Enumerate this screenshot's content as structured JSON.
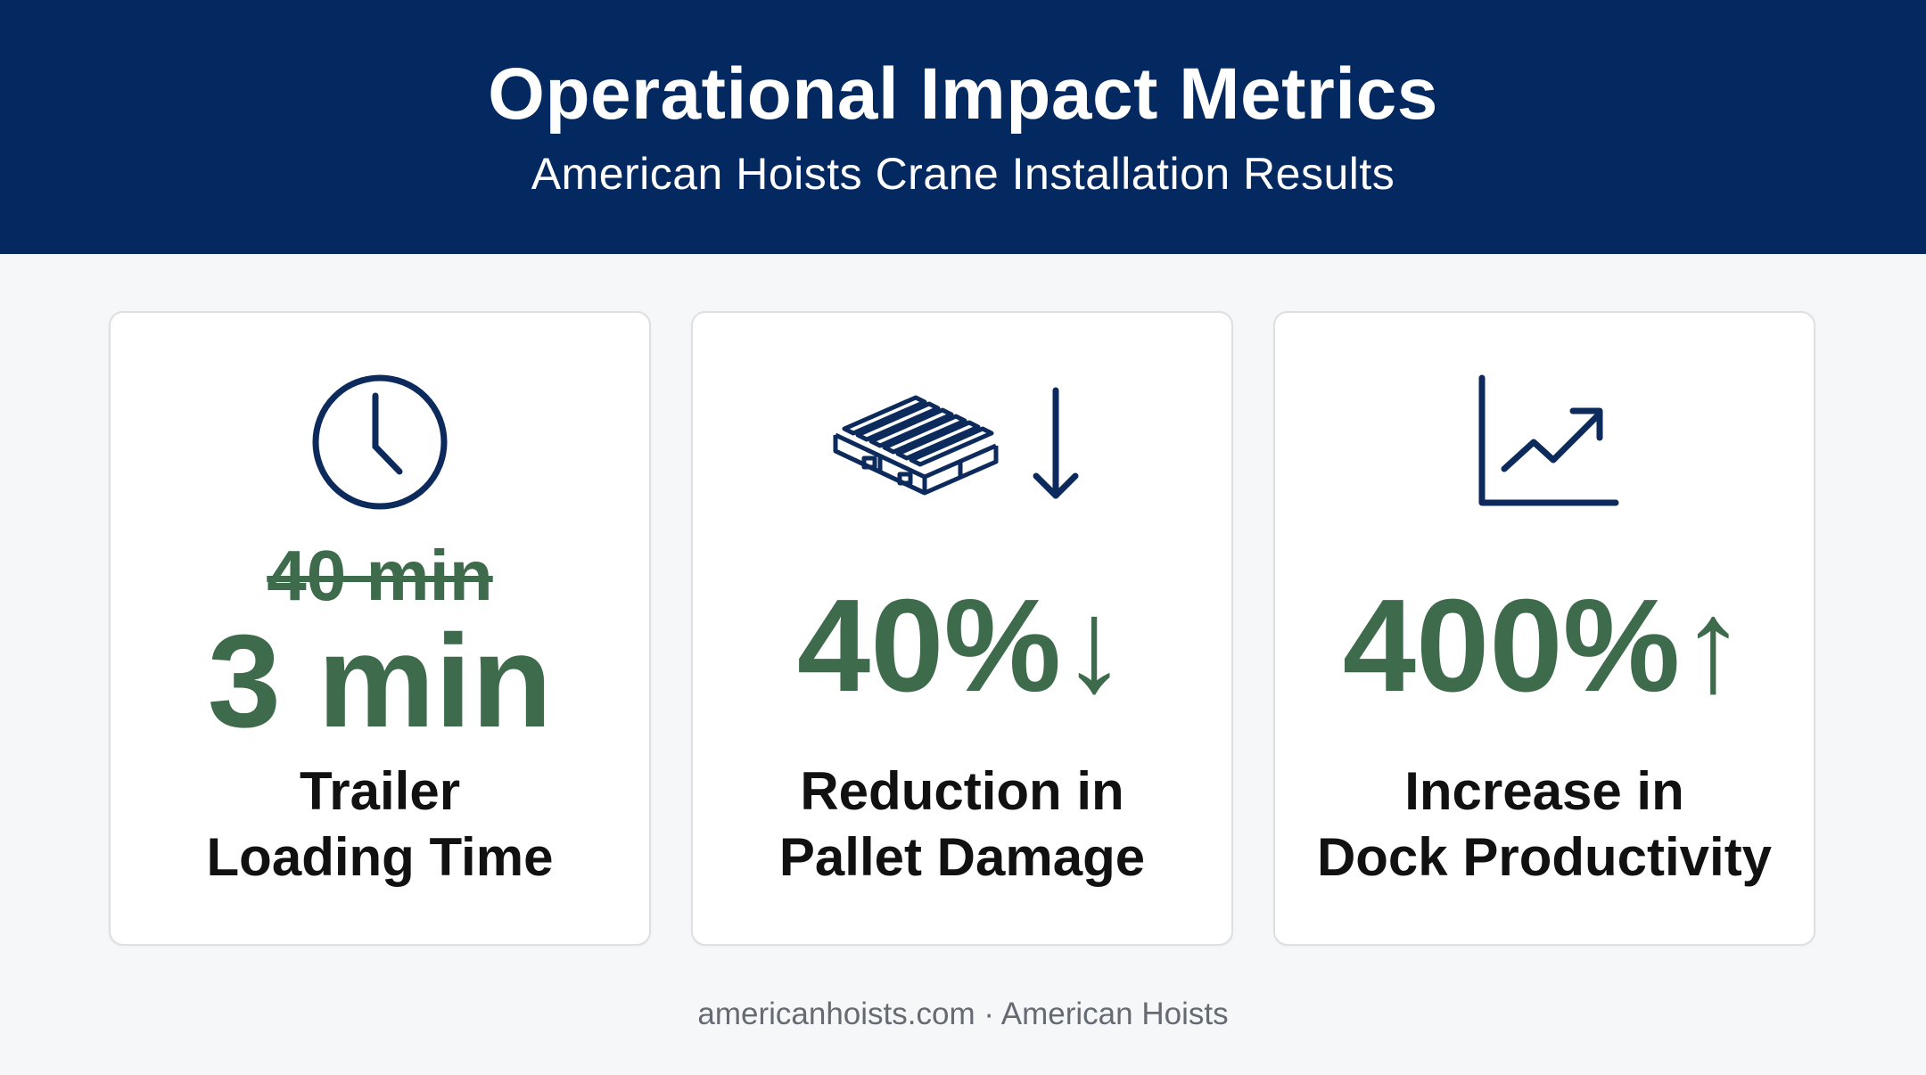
{
  "header": {
    "title": "Operational Impact Metrics",
    "subtitle": "American Hoists Crane Installation Results"
  },
  "cards": [
    {
      "icon": "clock-icon",
      "old_value": "40 min",
      "value": "3 min",
      "label_line1": "Trailer",
      "label_line2": "Loading Time"
    },
    {
      "icon": "pallet-down-arrow-icon",
      "value": "40%↓",
      "label_line1": "Reduction in",
      "label_line2": "Pallet Damage"
    },
    {
      "icon": "rising-chart-icon",
      "value": "400%↑",
      "label_line1": "Increase in",
      "label_line2": "Dock Productivity"
    }
  ],
  "footer": {
    "text": "americanhoists.com · American Hoists"
  },
  "colors": {
    "header_bg": "#042860",
    "accent_green": "#3e6b4b",
    "icon_navy": "#0c2a5b"
  }
}
